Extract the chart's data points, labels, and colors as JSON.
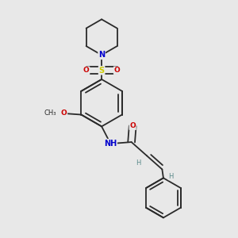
{
  "background_color": "#e8e8e8",
  "bond_color": "#2a2a2a",
  "atom_colors": {
    "N": "#0000cc",
    "O": "#cc0000",
    "S": "#cccc00",
    "H": "#5a8a8a"
  },
  "font_size_atom": 7.0,
  "fig_size": [
    3.0,
    3.0
  ],
  "dpi": 100,
  "xlim": [
    0.05,
    0.95
  ],
  "ylim": [
    0.02,
    0.98
  ]
}
